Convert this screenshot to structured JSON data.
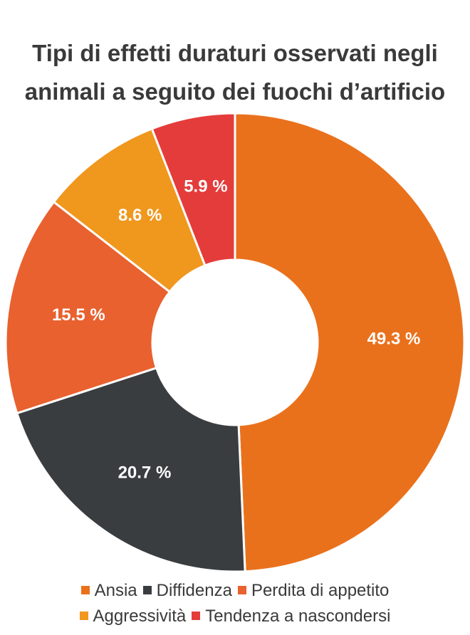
{
  "chart_data": {
    "type": "pie",
    "title": "Tipi di effetti duraturi osservati negli animali a seguito dei fuochi d’artificio",
    "title_lines": [
      "Tipi di effetti duraturi osservati negli",
      "animali a seguito dei fuochi d’artificio"
    ],
    "donut": true,
    "legend_position": "bottom",
    "slices": [
      {
        "label": "Ansia",
        "value": 49.3,
        "display": "49.3 %",
        "color": "#ea711c"
      },
      {
        "label": "Diffidenza",
        "value": 20.7,
        "display": "20.7 %",
        "color": "#3a3d3f"
      },
      {
        "label": "Perdita di appetito",
        "value": 15.5,
        "display": "15.5 %",
        "color": "#e8612f"
      },
      {
        "label": "Aggressività",
        "value": 8.6,
        "display": "8.6 %",
        "color": "#f0971d"
      },
      {
        "label": "Tendenza a nascondersi",
        "value": 5.9,
        "display": "5.9 %",
        "color": "#e43c3b"
      }
    ],
    "legend_rows": [
      [
        0,
        1,
        2
      ],
      [
        3,
        4
      ]
    ]
  }
}
